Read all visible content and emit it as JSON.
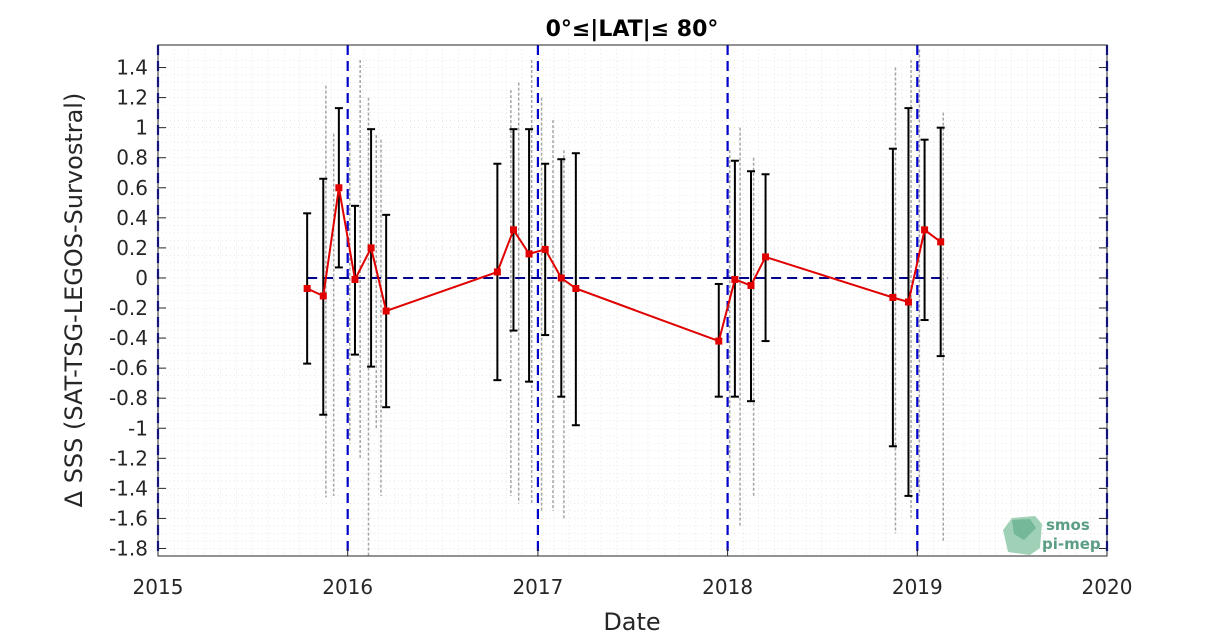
{
  "chart_data": {
    "type": "line",
    "title": "0°≤|LAT|≤ 80°",
    "xlabel": "Date",
    "ylabel": "Δ SSS (SAT-TSG-LEGOS-Survostral)",
    "xlim": [
      "2015-01-01",
      "2020-01-01"
    ],
    "ylim": [
      -1.85,
      1.55
    ],
    "x_ticks": [
      "2015",
      "2016",
      "2017",
      "2018",
      "2019",
      "2020"
    ],
    "x_tick_dates": [
      "2015-01-01",
      "2016-01-01",
      "2017-01-01",
      "2018-01-01",
      "2019-01-01",
      "2020-01-01"
    ],
    "y_ticks": [
      "1.4",
      "1.2",
      "1",
      "0.8",
      "0.6",
      "0.4",
      "0.2",
      "0",
      "-0.2",
      "-0.4",
      "-0.6",
      "-0.8",
      "-1",
      "-1.2",
      "-1.4",
      "-1.6",
      "-1.8"
    ],
    "y_tick_values": [
      1.4,
      1.2,
      1,
      0.8,
      0.6,
      0.4,
      0.2,
      0,
      -0.2,
      -0.4,
      -0.6,
      -0.8,
      -1,
      -1.2,
      -1.4,
      -1.6,
      -1.8
    ],
    "grid": true,
    "year_boundaries": [
      "2016-01-01",
      "2017-01-01",
      "2018-01-01",
      "2019-01-01",
      "2020-01-01"
    ],
    "zero_line": {
      "start": "2015-10-15",
      "end": "2019-02-28",
      "value": 0
    },
    "series": [
      {
        "color": "#e00000",
        "points": [
          {
            "date": "2015-10-15",
            "mean": -0.07,
            "upper": 0.43,
            "lower": -0.57
          },
          {
            "date": "2015-11-15",
            "mean": -0.12,
            "upper": 0.66,
            "lower": -0.91
          },
          {
            "date": "2015-12-15",
            "mean": 0.6,
            "upper": 1.13,
            "lower": 0.07
          },
          {
            "date": "2016-01-15",
            "mean": -0.01,
            "upper": 0.48,
            "lower": -0.51
          },
          {
            "date": "2016-02-15",
            "mean": 0.2,
            "upper": 0.99,
            "lower": -0.59
          },
          {
            "date": "2016-03-15",
            "mean": -0.22,
            "upper": 0.42,
            "lower": -0.86
          },
          {
            "date": "2016-10-15",
            "mean": 0.04,
            "upper": 0.76,
            "lower": -0.68
          },
          {
            "date": "2016-11-15",
            "mean": 0.32,
            "upper": 0.99,
            "lower": -0.35
          },
          {
            "date": "2016-12-15",
            "mean": 0.16,
            "upper": 0.99,
            "lower": -0.69
          },
          {
            "date": "2017-01-15",
            "mean": 0.19,
            "upper": 0.76,
            "lower": -0.38
          },
          {
            "date": "2017-02-15",
            "mean": 0.0,
            "upper": 0.79,
            "lower": -0.79
          },
          {
            "date": "2017-03-15",
            "mean": -0.07,
            "upper": 0.83,
            "lower": -0.98
          },
          {
            "date": "2017-12-15",
            "mean": -0.42,
            "upper": -0.04,
            "lower": -0.79
          },
          {
            "date": "2018-01-15",
            "mean": -0.01,
            "upper": 0.78,
            "lower": -0.79
          },
          {
            "date": "2018-02-15",
            "mean": -0.05,
            "upper": 0.71,
            "lower": -0.82
          },
          {
            "date": "2018-03-15",
            "mean": 0.14,
            "upper": 0.69,
            "lower": -0.42
          },
          {
            "date": "2018-11-15",
            "mean": -0.13,
            "upper": 0.86,
            "lower": -1.12
          },
          {
            "date": "2018-12-15",
            "mean": -0.16,
            "upper": 1.13,
            "lower": -1.45
          },
          {
            "date": "2019-01-15",
            "mean": 0.32,
            "upper": 0.92,
            "lower": -0.28
          },
          {
            "date": "2019-02-15",
            "mean": 0.24,
            "upper": 1.0,
            "lower": -0.52
          }
        ]
      }
    ],
    "scatter_streaks": [
      {
        "date": "2015-11-20",
        "top": 1.28,
        "bottom": -1.46
      },
      {
        "date": "2015-12-05",
        "top": 0.96,
        "bottom": -1.45
      },
      {
        "date": "2016-01-05",
        "top": 0.9,
        "bottom": -1.1
      },
      {
        "date": "2016-01-25",
        "top": 1.45,
        "bottom": -1.2
      },
      {
        "date": "2016-02-10",
        "top": 1.2,
        "bottom": -1.85
      },
      {
        "date": "2016-02-25",
        "top": 0.95,
        "bottom": -1.0
      },
      {
        "date": "2016-03-05",
        "top": 0.92,
        "bottom": -1.45
      },
      {
        "date": "2016-11-10",
        "top": 1.25,
        "bottom": -1.45
      },
      {
        "date": "2016-11-25",
        "top": 1.3,
        "bottom": -1.5
      },
      {
        "date": "2016-12-20",
        "top": 1.45,
        "bottom": -1.5
      },
      {
        "date": "2017-01-08",
        "top": 1.2,
        "bottom": -1.55
      },
      {
        "date": "2017-01-30",
        "top": 1.05,
        "bottom": -1.55
      },
      {
        "date": "2017-02-20",
        "top": 0.85,
        "bottom": -1.6
      },
      {
        "date": "2018-01-05",
        "top": 0.85,
        "bottom": -1.3
      },
      {
        "date": "2018-01-25",
        "top": 1.0,
        "bottom": -1.65
      },
      {
        "date": "2018-02-20",
        "top": 0.8,
        "bottom": -1.45
      },
      {
        "date": "2018-11-20",
        "top": 1.4,
        "bottom": -1.7
      },
      {
        "date": "2018-12-20",
        "top": 1.45,
        "bottom": -1.6
      },
      {
        "date": "2019-01-05",
        "top": 1.52,
        "bottom": -1.45
      },
      {
        "date": "2019-02-20",
        "top": 1.1,
        "bottom": -1.75
      }
    ]
  },
  "logo": {
    "line1": "smos",
    "line2": "pi-mep"
  },
  "colors": {
    "mean_line": "#e00000",
    "error_bar": "#000000",
    "year_line": "#0000cc",
    "zero_line": "#00008b",
    "streak": "#808080",
    "logo": "#5b9e84"
  }
}
